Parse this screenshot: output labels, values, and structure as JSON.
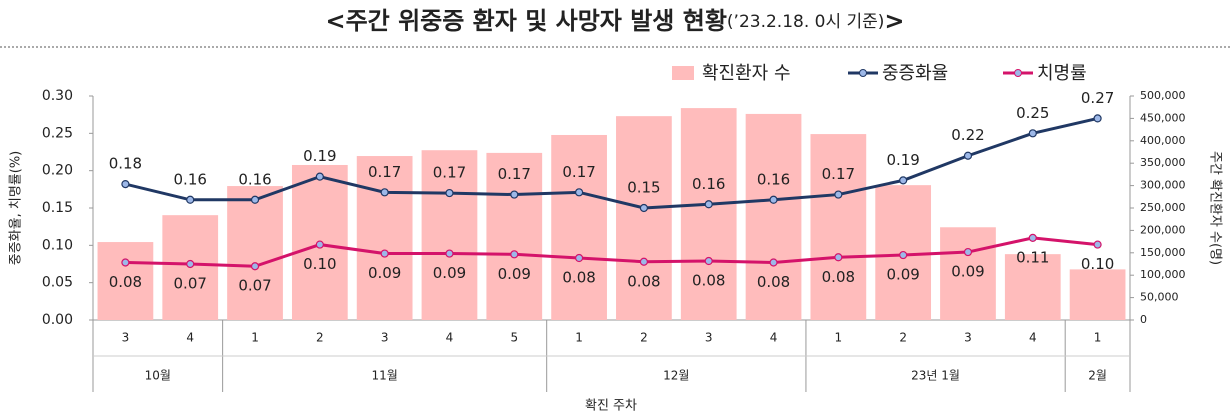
{
  "chart_data": {
    "type": "combo",
    "title": [
      "<주간 위중증 환자 및 사망자 발생 현황",
      "(’23.2.18. 0시 기준)",
      ">"
    ],
    "y_label": "중증화율, 치명률(%)",
    "y2_label": "주간 확진환자 수(명)",
    "x_label": "확진 주차",
    "categories": [
      "3",
      "4",
      "1",
      "2",
      "3",
      "4",
      "5",
      "1",
      "2",
      "3",
      "4",
      "1",
      "2",
      "3",
      "4",
      "1"
    ],
    "groups": [
      {
        "label": "10월",
        "span": 2
      },
      {
        "label": "11월",
        "span": 5
      },
      {
        "label": "12월",
        "span": 4
      },
      {
        "label": "23년 1월",
        "span": 4
      },
      {
        "label": "2월",
        "span": 1
      }
    ],
    "ylim": [
      0,
      0.3
    ],
    "yticks": [
      {
        "value": 0,
        "label": "0.00"
      },
      {
        "value": 0.05,
        "label": "0.05"
      },
      {
        "value": 0.1,
        "label": "0.10"
      },
      {
        "value": 0.15,
        "label": "0.15"
      },
      {
        "value": 0.2,
        "label": "0.20"
      },
      {
        "value": 0.25,
        "label": "0.25"
      },
      {
        "value": 0.3,
        "label": "0.30"
      }
    ],
    "y2lim": [
      0,
      500000
    ],
    "y2ticks": [
      0,
      {
        "value": 50000,
        "label": "50,000"
      },
      {
        "value": 100000,
        "label": "100,000"
      },
      {
        "value": 150000,
        "label": "150,000"
      },
      {
        "value": 200000,
        "label": "200,000"
      },
      {
        "value": 250000,
        "label": "250,000"
      },
      {
        "value": 300000,
        "label": "300,000"
      },
      {
        "value": 350000,
        "label": "350,000"
      },
      {
        "value": 400000,
        "label": "400,000"
      },
      {
        "value": 450000,
        "label": "450,000"
      },
      {
        "value": 500000,
        "label": "500,000"
      }
    ],
    "series": [
      {
        "name": "확진환자 수",
        "kind": "bar",
        "axis": "y2",
        "color": "#ffbcbc",
        "values": [
          174000,
          234000,
          299000,
          346000,
          366000,
          379000,
          373000,
          413000,
          455000,
          473000,
          460000,
          415000,
          301000,
          207000,
          147000,
          113000
        ]
      },
      {
        "name": "중증화율",
        "kind": "line",
        "color": "#203864",
        "values": [
          0.182,
          0.161,
          0.161,
          0.192,
          0.171,
          0.17,
          0.168,
          0.171,
          0.15,
          0.155,
          0.161,
          0.168,
          0.187,
          0.22,
          0.25,
          0.27
        ],
        "value_labels": [
          "0.18",
          "0.16",
          "0.16",
          "0.19",
          "0.17",
          "0.17",
          "0.17",
          "0.17",
          "0.15",
          "0.16",
          "0.16",
          "0.17",
          "0.19",
          "0.22",
          "0.25",
          "0.27"
        ]
      },
      {
        "name": "치명률",
        "kind": "line",
        "color": "#d4136a",
        "values": [
          0.077,
          0.075,
          0.072,
          0.101,
          0.089,
          0.089,
          0.088,
          0.083,
          0.078,
          0.079,
          0.077,
          0.084,
          0.087,
          0.091,
          0.11,
          0.101
        ],
        "value_labels": [
          "0.08",
          "0.07",
          "0.07",
          "0.10",
          "0.09",
          "0.09",
          "0.09",
          "0.08",
          "0.08",
          "0.08",
          "0.08",
          "0.08",
          "0.09",
          "0.09",
          "0.11",
          "0.10"
        ]
      }
    ]
  }
}
